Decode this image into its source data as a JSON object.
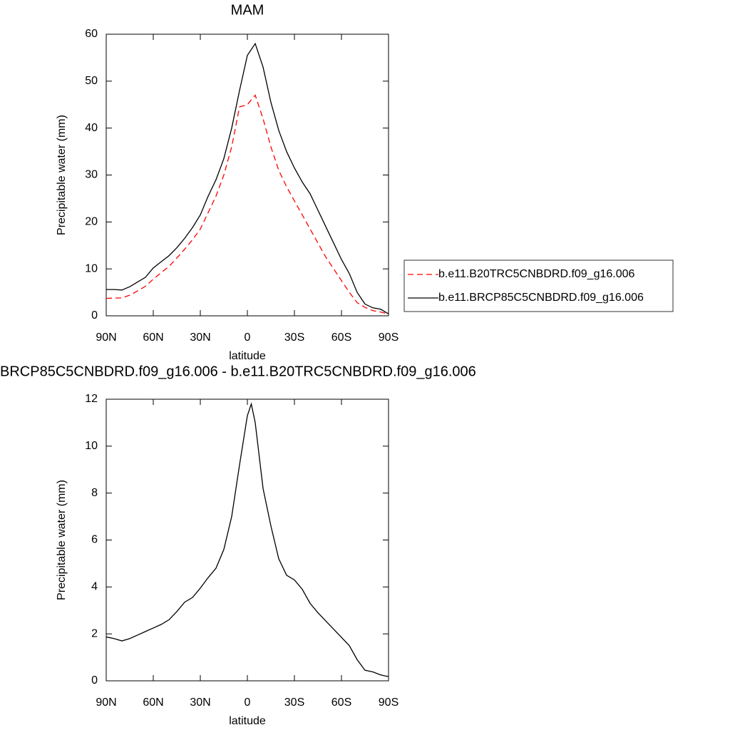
{
  "chart_data": [
    {
      "type": "line",
      "title": "MAM",
      "x_label": "latitude",
      "y_label": "Precipitable water (mm)",
      "x": [
        90,
        85,
        80,
        75,
        70,
        65,
        60,
        55,
        50,
        45,
        40,
        35,
        30,
        25,
        20,
        15,
        10,
        5,
        0,
        -5,
        -10,
        -15,
        -20,
        -25,
        -30,
        -35,
        -40,
        -45,
        -50,
        -55,
        -60,
        -65,
        -70,
        -75,
        -80,
        -85,
        -90
      ],
      "series": [
        {
          "name": "b.e11.B20TRC5CNBDRD.f09_g16.006",
          "color": "#ff0000",
          "style": "dashed",
          "values": [
            3.7,
            3.8,
            3.8,
            4.4,
            5.3,
            6.3,
            7.8,
            9.2,
            10.5,
            12.3,
            14.2,
            16.2,
            18.5,
            22,
            25.5,
            30,
            36,
            44.5,
            45,
            47,
            42,
            36,
            31,
            27.5,
            24.5,
            21.5,
            18.5,
            15.5,
            12.5,
            10,
            7.5,
            5,
            2.8,
            1.8,
            1.1,
            0.8,
            0.4
          ]
        },
        {
          "name": "b.e11.BRCP85C5CNBDRD.f09_g16.006",
          "color": "#000000",
          "style": "solid",
          "values": [
            5.6,
            5.6,
            5.5,
            6.2,
            7.2,
            8.2,
            10.2,
            11.5,
            12.8,
            14.5,
            16.5,
            18.8,
            21.5,
            25.5,
            29,
            33.5,
            40,
            48,
            55.5,
            58,
            53,
            45.5,
            39.5,
            35,
            31.5,
            28.5,
            26,
            22.5,
            19,
            15.5,
            12,
            9,
            5,
            2.5,
            1.7,
            1.4,
            0.4
          ]
        }
      ],
      "xlim": [
        90,
        -90
      ],
      "xticks": [
        {
          "value": 90,
          "label": "90N"
        },
        {
          "value": 60,
          "label": "60N"
        },
        {
          "value": 30,
          "label": "30N"
        },
        0,
        {
          "value": -30,
          "label": "30S"
        },
        {
          "value": -60,
          "label": "60S"
        },
        {
          "value": -90,
          "label": "90S"
        }
      ],
      "ylim": [
        0,
        60
      ],
      "yticks": [
        0,
        10,
        20,
        30,
        40,
        50,
        60
      ],
      "legend": "right"
    },
    {
      "type": "line",
      "title": "BRCP85C5CNBDRD.f09_g16.006 - b.e11.B20TRC5CNBDRD.f09_g16.006",
      "x_label": "latitude",
      "y_label": "Precipitable water (mm)",
      "x": [
        90,
        85,
        80,
        75,
        70,
        65,
        60,
        55,
        50,
        45,
        40,
        35,
        30,
        25,
        20,
        15,
        10,
        5,
        0,
        -2.5,
        -5,
        -10,
        -15,
        -20,
        -25,
        -30,
        -35,
        -40,
        -45,
        -50,
        -55,
        -60,
        -65,
        -70,
        -75,
        -80,
        -85,
        -90
      ],
      "values": [
        1.87,
        1.8,
        1.7,
        1.8,
        1.95,
        2.1,
        2.25,
        2.4,
        2.6,
        2.95,
        3.35,
        3.55,
        3.95,
        4.4,
        4.8,
        5.6,
        7,
        9.2,
        11.3,
        11.8,
        11,
        8.2,
        6.6,
        5.2,
        4.5,
        4.3,
        3.9,
        3.3,
        2.9,
        2.55,
        2.2,
        1.85,
        1.5,
        0.9,
        0.45,
        0.38,
        0.25,
        0.18
      ],
      "color": "#000000",
      "xlim": [
        90,
        -90
      ],
      "xticks": [
        {
          "value": 90,
          "label": "90N"
        },
        {
          "value": 60,
          "label": "60N"
        },
        {
          "value": 30,
          "label": "30N"
        },
        0,
        {
          "value": -30,
          "label": "30S"
        },
        {
          "value": -60,
          "label": "60S"
        },
        {
          "value": -90,
          "label": "90S"
        }
      ],
      "ylim": [
        0,
        12
      ],
      "yticks": [
        0,
        2,
        4,
        6,
        8,
        10,
        12
      ]
    }
  ]
}
